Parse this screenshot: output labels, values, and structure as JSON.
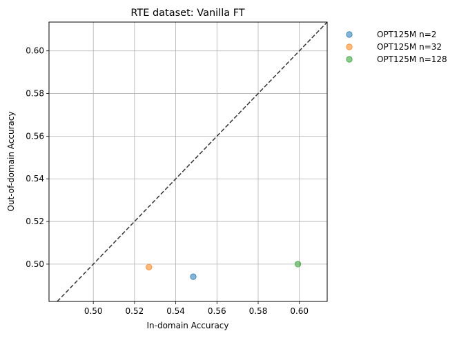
{
  "chart_data": {
    "type": "scatter",
    "title": "RTE dataset: Vanilla FT",
    "xlabel": "In-domain Accuracy",
    "ylabel": "Out-of-domain Accuracy",
    "xlim": [
      0.4785,
      0.6135
    ],
    "ylim": [
      0.4825,
      0.6135
    ],
    "xticks": [
      0.5,
      0.52,
      0.54,
      0.56,
      0.58,
      0.6
    ],
    "yticks": [
      0.5,
      0.52,
      0.54,
      0.56,
      0.58,
      0.6
    ],
    "xtick_labels": [
      "0.50",
      "0.52",
      "0.54",
      "0.56",
      "0.58",
      "0.60"
    ],
    "ytick_labels": [
      "0.50",
      "0.52",
      "0.54",
      "0.56",
      "0.58",
      "0.60"
    ],
    "grid": true,
    "diagonal": "y = x (dashed)",
    "legend_position": "outside-top-right",
    "series": [
      {
        "name": "OPT125M n=2",
        "color": "#1f77b4",
        "x": [
          0.5485
        ],
        "y": [
          0.4941
        ]
      },
      {
        "name": "OPT125M n=32",
        "color": "#ff7f0e",
        "x": [
          0.527
        ],
        "y": [
          0.4986
        ]
      },
      {
        "name": "OPT125M n=128",
        "color": "#2ca02c",
        "x": [
          0.5993
        ],
        "y": [
          0.5
        ]
      }
    ]
  }
}
